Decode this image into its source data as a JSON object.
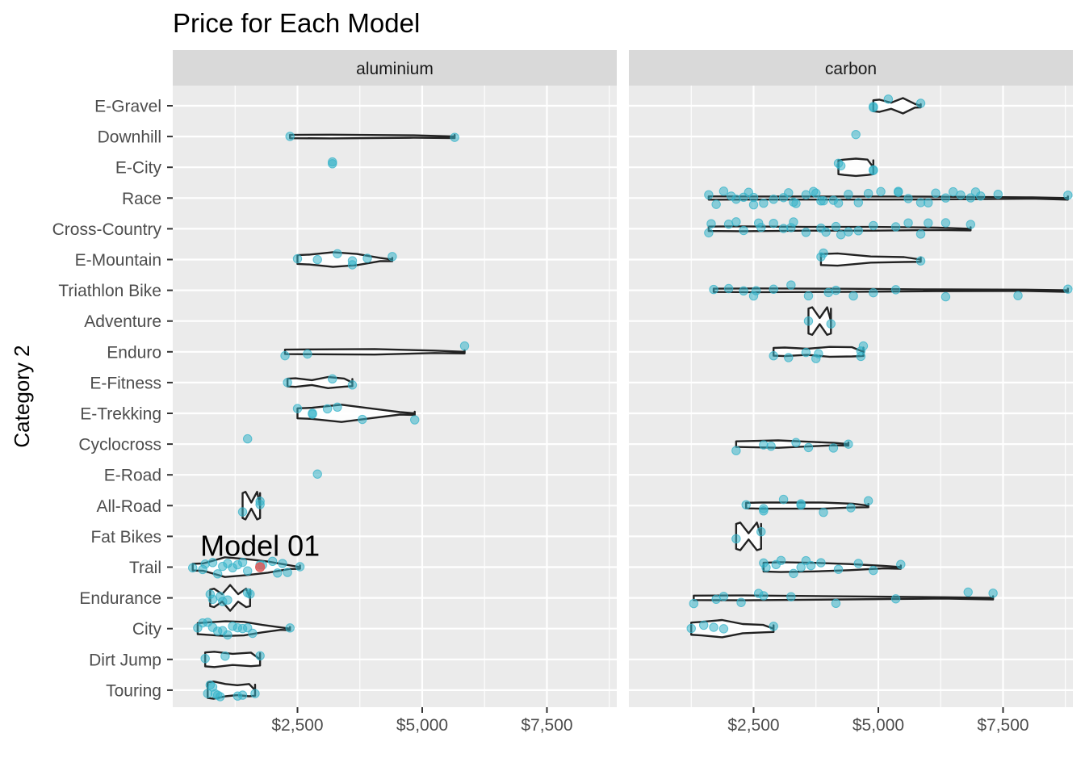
{
  "chart_data": {
    "type": "violin",
    "title": "Price for Each Model",
    "xlabel": "",
    "ylabel": "Category 2",
    "xlim": [
      0,
      8900
    ],
    "x_ticks": [
      2500,
      5000,
      7500
    ],
    "x_tick_labels": [
      "$2,500",
      "$5,000",
      "$7,500"
    ],
    "grid": true,
    "facet_by": "frame material",
    "categories": [
      "E-Gravel",
      "Downhill",
      "E-City",
      "Race",
      "Cross-Country",
      "E-Mountain",
      "Triathlon Bike",
      "Adventure",
      "Enduro",
      "E-Fitness",
      "E-Trekking",
      "Cyclocross",
      "E-Road",
      "All-Road",
      "Fat Bikes",
      "Trail",
      "Endurance",
      "City",
      "Dirt Jump",
      "Touring"
    ],
    "point_color": "#34b3c9",
    "highlight_color": "#e05a5a",
    "annotation": {
      "text": "Model 01",
      "panel": "aluminium",
      "category": "Trail",
      "x": 1750
    },
    "panels": [
      {
        "strip": "aluminium",
        "series": [
          {
            "category": "Downhill",
            "prices": [
              2350,
              5650
            ]
          },
          {
            "category": "E-City",
            "prices": [
              3200,
              3200
            ]
          },
          {
            "category": "E-Mountain",
            "prices": [
              2500,
              2900,
              3300,
              3600,
              3600,
              3900,
              4400
            ]
          },
          {
            "category": "Enduro",
            "prices": [
              2250,
              2700,
              5850
            ]
          },
          {
            "category": "E-Fitness",
            "prices": [
              2300,
              3200,
              3600
            ]
          },
          {
            "category": "E-Trekking",
            "prices": [
              2500,
              2800,
              2800,
              3100,
              3300,
              3800,
              4850
            ]
          },
          {
            "category": "Cyclocross",
            "prices": [
              1500
            ]
          },
          {
            "category": "E-Road",
            "prices": [
              2900
            ]
          },
          {
            "category": "All-Road",
            "prices": [
              1400,
              1750,
              1750
            ]
          },
          {
            "category": "Trail",
            "prices": [
              400,
              600,
              650,
              800,
              900,
              1000,
              1100,
              1200,
              1300,
              1400,
              1500,
              1750,
              1800,
              2000,
              2100,
              2200,
              2300,
              2550
            ]
          },
          {
            "category": "Endurance",
            "prices": [
              750,
              800,
              950,
              1000,
              1100,
              1500,
              1550
            ]
          },
          {
            "category": "City",
            "prices": [
              500,
              600,
              700,
              800,
              900,
              1000,
              1100,
              1200,
              1300,
              1400,
              1500,
              1600,
              2350
            ]
          },
          {
            "category": "Dirt Jump",
            "prices": [
              650,
              1050,
              1750
            ]
          },
          {
            "category": "Touring",
            "prices": [
              700,
              750,
              800,
              850,
              900,
              950,
              1300,
              1400,
              1650
            ]
          }
        ],
        "violins": [
          {
            "category": "Downhill",
            "min": 2350,
            "max": 5650,
            "halfwidth": [
              0.06,
              0.04
            ]
          },
          {
            "category": "Enduro",
            "min": 2250,
            "max": 5850,
            "halfwidth": [
              0.08,
              0.09,
              0.04
            ]
          },
          {
            "category": "E-Mountain",
            "min": 2500,
            "max": 4400,
            "halfwidth": [
              0.16,
              0.24,
              0.18,
              0.05
            ]
          },
          {
            "category": "E-Fitness",
            "min": 2300,
            "max": 3600,
            "halfwidth": [
              0.14,
              0.08,
              0.18,
              0.13
            ]
          },
          {
            "category": "E-Trekking",
            "min": 2500,
            "max": 4850,
            "halfwidth": [
              0.18,
              0.28,
              0.16,
              0.04
            ]
          },
          {
            "category": "All-Road",
            "min": 1400,
            "max": 1750,
            "halfwidth": [
              0.45,
              0.1,
              0.45
            ]
          },
          {
            "category": "Trail",
            "min": 400,
            "max": 2550,
            "halfwidth": [
              0.12,
              0.32,
              0.26,
              0.18,
              0.06
            ]
          },
          {
            "category": "Endurance",
            "min": 750,
            "max": 1550,
            "halfwidth": [
              0.3,
              0.12,
              0.42,
              0.12,
              0.3
            ]
          },
          {
            "category": "City",
            "min": 500,
            "max": 2350,
            "halfwidth": [
              0.2,
              0.24,
              0.22,
              0.12,
              0.04
            ]
          },
          {
            "category": "Dirt Jump",
            "min": 650,
            "max": 1750,
            "halfwidth": [
              0.25,
              0.18,
              0.22
            ]
          },
          {
            "category": "Touring",
            "min": 700,
            "max": 1650,
            "halfwidth": [
              0.28,
              0.2,
              0.16,
              0.2
            ]
          }
        ]
      },
      {
        "strip": "carbon",
        "series": [
          {
            "category": "E-Gravel",
            "prices": [
              4900,
              4900,
              5200,
              5850
            ]
          },
          {
            "category": "Downhill",
            "prices": [
              4550
            ]
          },
          {
            "category": "E-City",
            "prices": [
              4200,
              4250,
              4900,
              4900
            ]
          },
          {
            "category": "Race",
            "prices": [
              1600,
              1750,
              1900,
              2050,
              2150,
              2300,
              2400,
              2500,
              2500,
              2700,
              2900,
              3100,
              3200,
              3300,
              3350,
              3550,
              3700,
              3750,
              3850,
              3900,
              4100,
              4200,
              4400,
              4600,
              4800,
              5050,
              5400,
              5400,
              5600,
              5850,
              6000,
              6150,
              6350,
              6500,
              6650,
              6850,
              6950,
              7050,
              7400,
              8800
            ]
          },
          {
            "category": "Cross-Country",
            "prices": [
              1600,
              1650,
              2000,
              2150,
              2300,
              2600,
              2650,
              2900,
              3100,
              3250,
              3300,
              3550,
              3850,
              3950,
              4150,
              4250,
              4400,
              4600,
              4900,
              5350,
              5600,
              5850,
              6000,
              6350,
              6850
            ]
          },
          {
            "category": "E-Mountain",
            "prices": [
              3850,
              3900,
              5850
            ]
          },
          {
            "category": "Triathlon Bike",
            "prices": [
              1700,
              2000,
              2300,
              2500,
              2550,
              2900,
              3250,
              3600,
              4000,
              4150,
              4500,
              4900,
              5350,
              6350,
              7800,
              8800
            ]
          },
          {
            "category": "Adventure",
            "prices": [
              3600,
              4050
            ]
          },
          {
            "category": "Enduro",
            "prices": [
              2900,
              3200,
              3550,
              3750,
              3800,
              4650,
              4650,
              4700
            ]
          },
          {
            "category": "Cyclocross",
            "prices": [
              2150,
              2700,
              2850,
              3350,
              3600,
              4100,
              4400
            ]
          },
          {
            "category": "All-Road",
            "prices": [
              2350,
              2700,
              2700,
              3100,
              3450,
              3450,
              3900,
              4450,
              4800
            ]
          },
          {
            "category": "Fat Bikes",
            "prices": [
              2150,
              2650
            ]
          },
          {
            "category": "Trail",
            "prices": [
              2700,
              2750,
              2950,
              3050,
              3300,
              3450,
              3550,
              3650,
              3850,
              4200,
              4600,
              4900,
              5450
            ]
          },
          {
            "category": "Endurance",
            "prices": [
              1300,
              1750,
              1900,
              2250,
              2600,
              2700,
              3250,
              4150,
              5350,
              6800,
              7300
            ]
          },
          {
            "category": "City",
            "prices": [
              1250,
              1500,
              1700,
              1900,
              2900
            ]
          }
        ],
        "violins": [
          {
            "category": "E-Gravel",
            "min": 4900,
            "max": 5850,
            "halfwidth": [
              0.2,
              0.1,
              0.25,
              0.06
            ]
          },
          {
            "category": "E-City",
            "min": 4200,
            "max": 4900,
            "halfwidth": [
              0.25,
              0.28,
              0.25
            ]
          },
          {
            "category": "Race",
            "min": 1600,
            "max": 8800,
            "halfwidth": [
              0.05,
              0.05,
              0.05,
              0.04,
              0.02
            ]
          },
          {
            "category": "Cross-Country",
            "min": 1600,
            "max": 6850,
            "halfwidth": [
              0.08,
              0.06,
              0.06,
              0.04
            ]
          },
          {
            "category": "E-Mountain",
            "min": 3850,
            "max": 5850,
            "halfwidth": [
              0.2,
              0.1,
              0.08
            ]
          },
          {
            "category": "Triathlon Bike",
            "min": 1700,
            "max": 8800,
            "halfwidth": [
              0.06,
              0.05,
              0.03,
              0.02
            ]
          },
          {
            "category": "Adventure",
            "min": 3600,
            "max": 4050,
            "halfwidth": [
              0.45,
              0.1,
              0.45
            ]
          },
          {
            "category": "Enduro",
            "min": 2900,
            "max": 4700,
            "halfwidth": [
              0.14,
              0.1,
              0.16,
              0.15
            ]
          },
          {
            "category": "Cyclocross",
            "min": 2150,
            "max": 4400,
            "halfwidth": [
              0.1,
              0.12,
              0.08,
              0.04
            ]
          },
          {
            "category": "All-Road",
            "min": 2350,
            "max": 4800,
            "halfwidth": [
              0.1,
              0.1,
              0.1,
              0.06
            ]
          },
          {
            "category": "Fat Bikes",
            "min": 2150,
            "max": 2650,
            "halfwidth": [
              0.45,
              0.1,
              0.45
            ]
          },
          {
            "category": "Trail",
            "min": 2700,
            "max": 5450,
            "halfwidth": [
              0.16,
              0.14,
              0.1,
              0.04
            ]
          },
          {
            "category": "Endurance",
            "min": 1300,
            "max": 7300,
            "halfwidth": [
              0.08,
              0.05,
              0.02
            ]
          },
          {
            "category": "City",
            "min": 1250,
            "max": 2900,
            "halfwidth": [
              0.22,
              0.28,
              0.15,
              0.12
            ]
          }
        ]
      }
    ]
  }
}
